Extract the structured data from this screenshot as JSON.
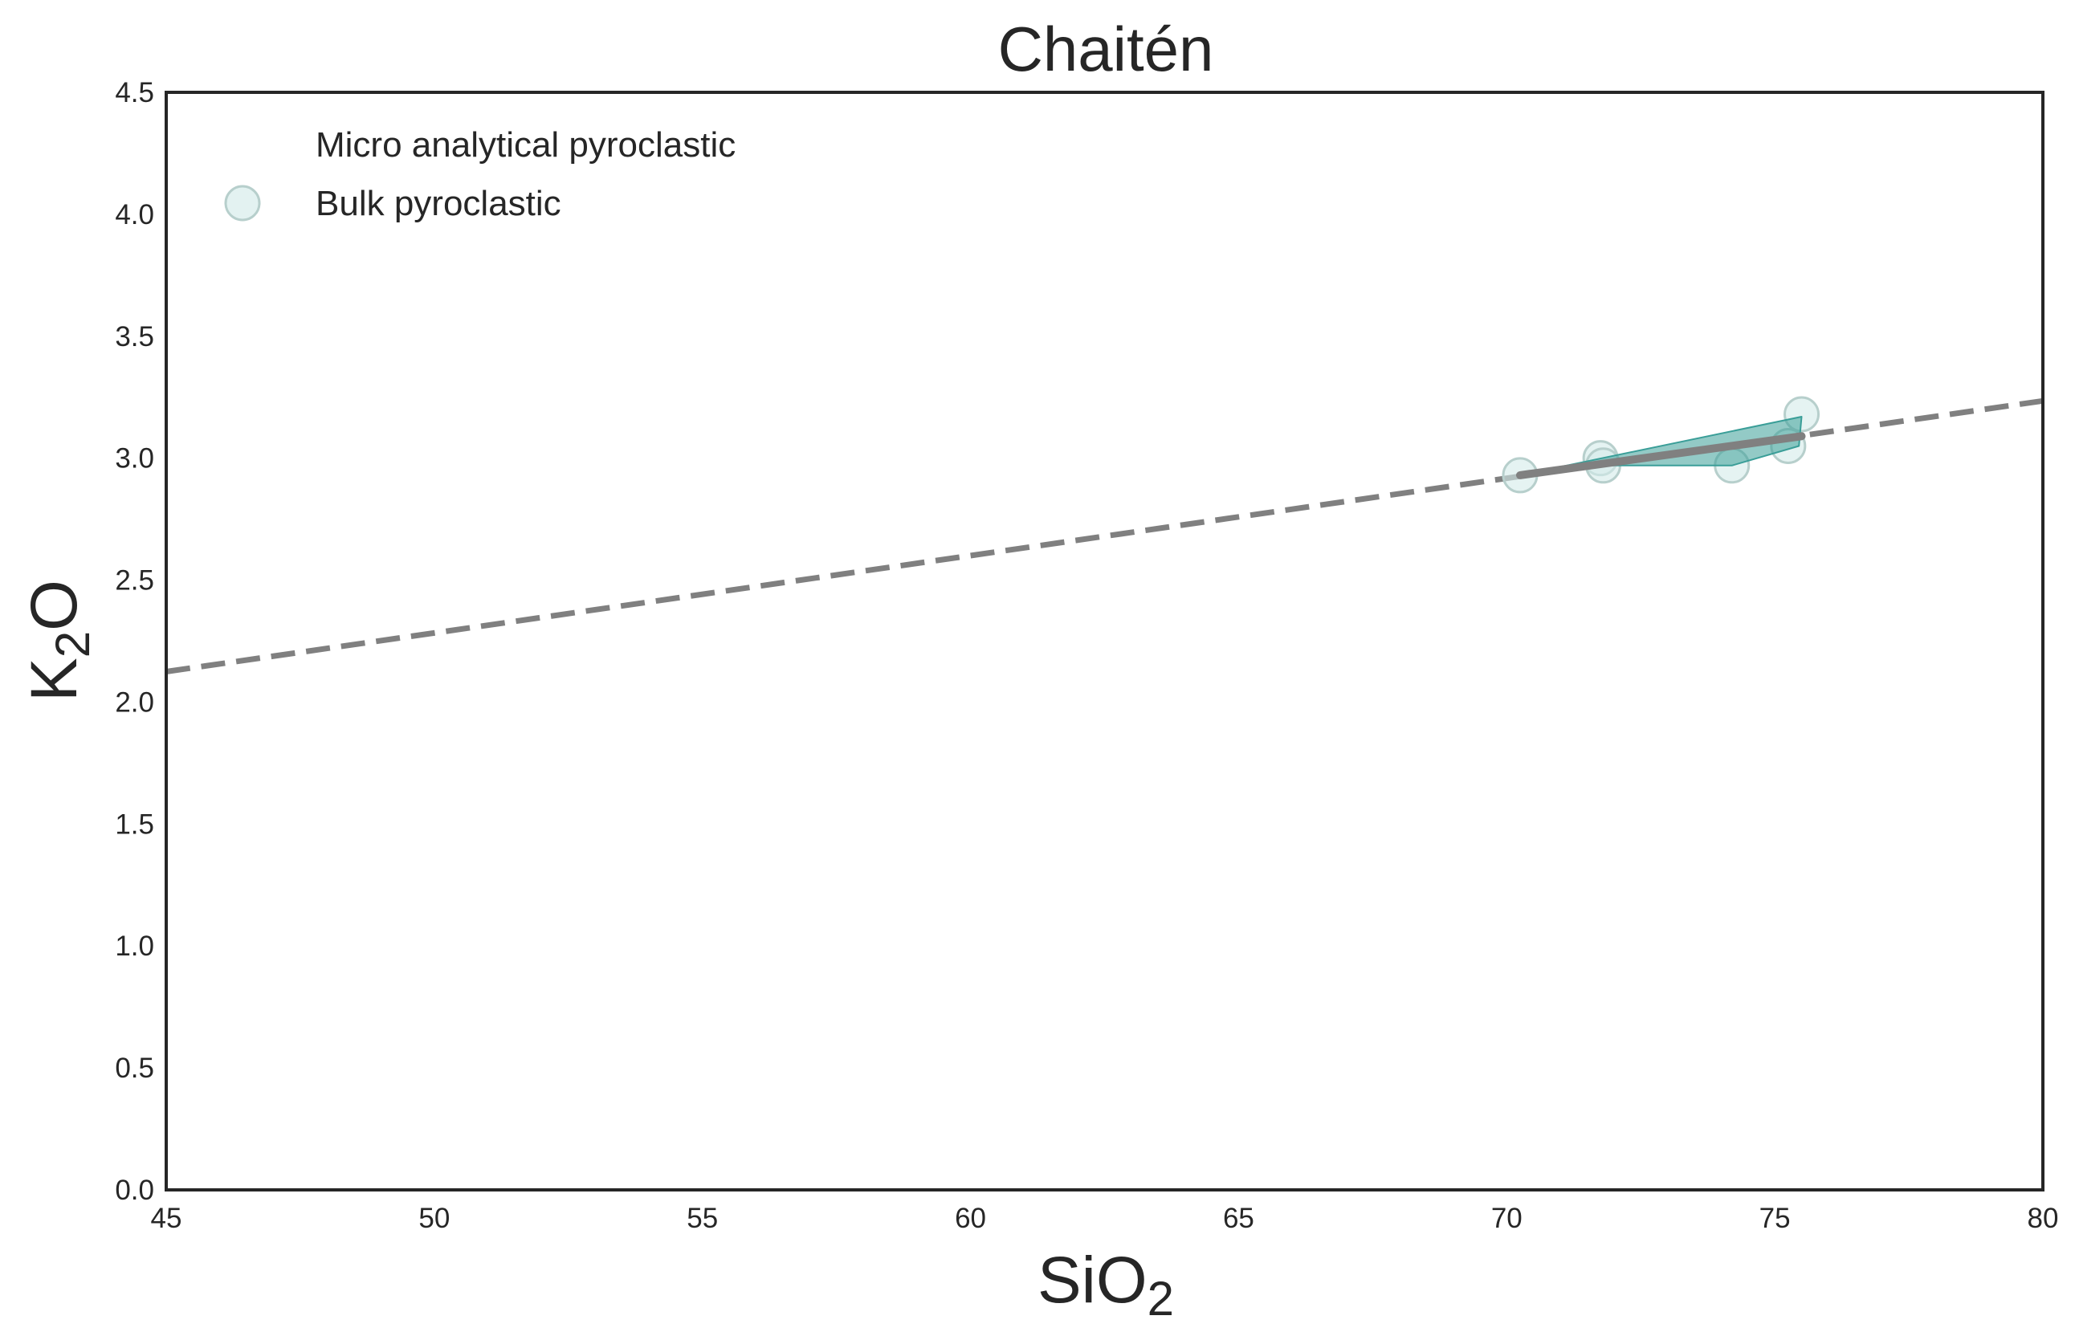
{
  "chart_data": {
    "type": "scatter",
    "title": "Chaitén",
    "xlabel": {
      "main": "SiO",
      "sub": "2"
    },
    "ylabel": {
      "main": "K",
      "sub": "2",
      "tail": "O"
    },
    "xlim": [
      45,
      80
    ],
    "ylim": [
      0,
      4.5
    ],
    "xticks": [
      "45",
      "50",
      "55",
      "60",
      "65",
      "70",
      "75",
      "80"
    ],
    "yticks": [
      "0.0",
      "0.5",
      "1.0",
      "1.5",
      "2.0",
      "2.5",
      "3.0",
      "3.5",
      "4.0",
      "4.5"
    ],
    "grid": false,
    "legend": {
      "location": "top-left",
      "entries": [
        "Micro analytical pyroclastic",
        "Bulk pyroclastic"
      ]
    },
    "series": [
      {
        "name": "Bulk pyroclastic",
        "kind": "scatter",
        "color": "#d4ebea",
        "edge_color": "#b7cfcc",
        "points": [
          [
            70.25,
            2.93
          ],
          [
            71.75,
            3.0
          ],
          [
            71.8,
            2.97
          ],
          [
            74.2,
            2.97
          ],
          [
            75.25,
            3.05
          ],
          [
            75.5,
            3.18
          ]
        ]
      },
      {
        "name": "Micro analytical pyroclastic",
        "kind": "filled-area",
        "color": "#3a9e98",
        "points": [
          [
            70.25,
            2.93
          ],
          [
            75.5,
            3.17
          ],
          [
            75.45,
            3.05
          ],
          [
            74.2,
            2.97
          ],
          [
            71.8,
            2.97
          ]
        ]
      },
      {
        "kind": "trend-solid",
        "color": "#808080",
        "points": [
          [
            70.25,
            2.93
          ],
          [
            75.5,
            3.09
          ]
        ]
      },
      {
        "kind": "trend-dashed",
        "color": "#808080",
        "points": [
          [
            45,
            2.125
          ],
          [
            80,
            3.235
          ]
        ]
      }
    ]
  }
}
